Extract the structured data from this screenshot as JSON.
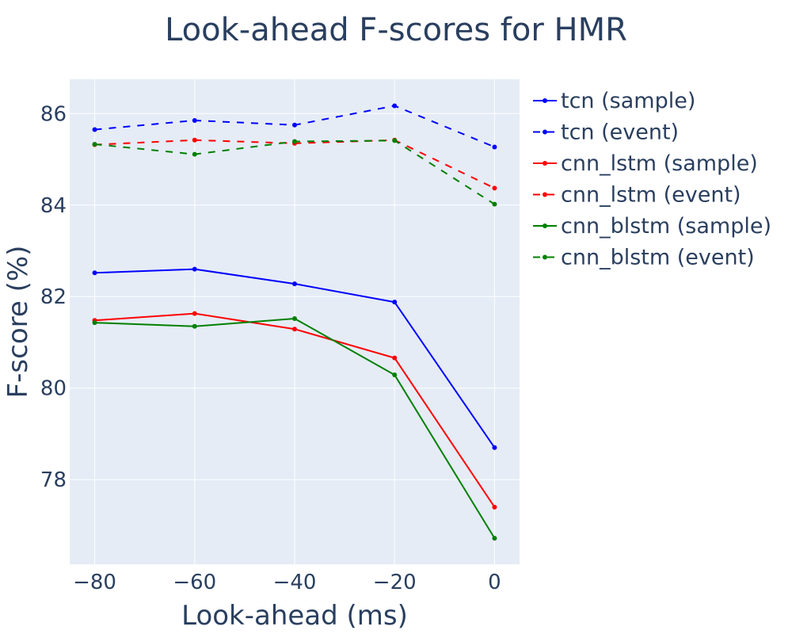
{
  "chart_data": {
    "type": "line",
    "title": "Look-ahead F-scores for HMR",
    "xlabel": "Look-ahead (ms)",
    "ylabel": "F-score (%)",
    "x": [
      -80,
      -60,
      -40,
      -20,
      0
    ],
    "xlim": [
      -85,
      5
    ],
    "ylim": [
      76.15,
      86.75
    ],
    "xticks": [
      -80,
      -60,
      -40,
      -20,
      0
    ],
    "xtick_labels": [
      "−80",
      "−60",
      "−40",
      "−20",
      "0"
    ],
    "yticks": [
      78,
      80,
      82,
      84,
      86
    ],
    "ytick_labels": [
      "78",
      "80",
      "82",
      "84",
      "86"
    ],
    "grid": true,
    "legend_position": "right",
    "colors": {
      "plot_background": "#e5ecf6",
      "grid": "#ffffff",
      "text": "#2a3f5f"
    },
    "series": [
      {
        "name": "tcn (sample)",
        "color": "#0000ff",
        "dash": "solid",
        "values": [
          82.52,
          82.6,
          82.28,
          81.88,
          78.7
        ]
      },
      {
        "name": "tcn (event)",
        "color": "#0000ff",
        "dash": "dash",
        "values": [
          85.65,
          85.85,
          85.75,
          86.17,
          85.27
        ]
      },
      {
        "name": "cnn_lstm (sample)",
        "color": "#ff0000",
        "dash": "solid",
        "values": [
          81.48,
          81.63,
          81.29,
          80.66,
          77.4
        ]
      },
      {
        "name": "cnn_lstm (event)",
        "color": "#ff0000",
        "dash": "dash",
        "values": [
          85.32,
          85.42,
          85.35,
          85.42,
          84.37
        ]
      },
      {
        "name": "cnn_blstm (sample)",
        "color": "#008000",
        "dash": "solid",
        "values": [
          81.43,
          81.35,
          81.52,
          80.29,
          76.72
        ]
      },
      {
        "name": "cnn_blstm (event)",
        "color": "#008000",
        "dash": "dash",
        "values": [
          85.33,
          85.11,
          85.39,
          85.41,
          84.02
        ]
      }
    ]
  }
}
